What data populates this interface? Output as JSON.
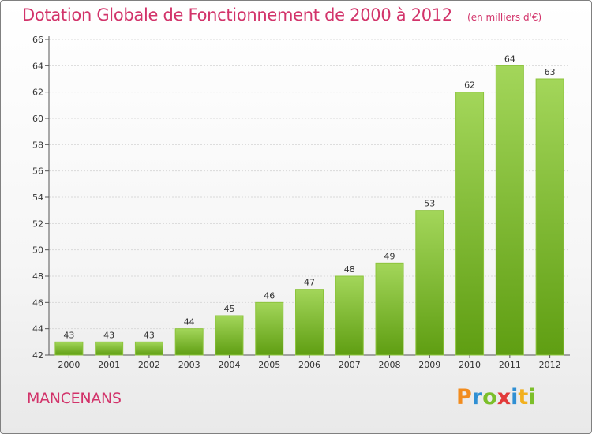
{
  "header": {
    "title": "Dotation Globale de Fonctionnement de 2000 à 2012",
    "subtitle": "(en milliers d'€)"
  },
  "footer": {
    "town": "MANCENANS",
    "logo": {
      "letters": [
        "P",
        "r",
        "o",
        "x",
        "i",
        "t",
        "i"
      ],
      "colors": [
        "#f28c1e",
        "#2f8fd3",
        "#7cbf2a",
        "#e23a3a",
        "#2f8fd3",
        "#f2b01e",
        "#7cbf2a"
      ]
    }
  },
  "colors": {
    "bar_light": "#a3d65a",
    "bar_dark": "#5f9e12",
    "axis": "#555555",
    "grid": "#d9d9d9",
    "text": "#333333",
    "accent": "#d2336a"
  },
  "chart_data": {
    "type": "bar",
    "categories": [
      "2000",
      "2001",
      "2002",
      "2003",
      "2004",
      "2005",
      "2006",
      "2007",
      "2008",
      "2009",
      "2010",
      "2011",
      "2012"
    ],
    "values": [
      43,
      43,
      43,
      44,
      45,
      46,
      47,
      48,
      49,
      53,
      62,
      64,
      63
    ],
    "data_labels": [
      "43",
      "43",
      "43",
      "44",
      "45",
      "46",
      "47",
      "48",
      "49",
      "53",
      "62",
      "64",
      "63"
    ],
    "ylim": [
      42,
      66
    ],
    "yticks": [
      42,
      44,
      46,
      48,
      50,
      52,
      54,
      56,
      58,
      60,
      62,
      64,
      66
    ],
    "grid": true
  }
}
